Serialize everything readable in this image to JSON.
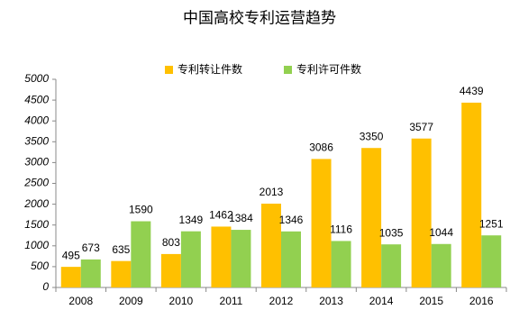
{
  "chart_data": {
    "type": "bar",
    "title": "中国高校专利运营趋势",
    "categories": [
      "2008",
      "2009",
      "2010",
      "2011",
      "2012",
      "2013",
      "2014",
      "2015",
      "2016"
    ],
    "series": [
      {
        "name": "专利转让件数",
        "color": "#FFC000",
        "values": [
          495,
          635,
          803,
          1462,
          2013,
          3086,
          3350,
          3577,
          4439
        ]
      },
      {
        "name": "专利许可件数",
        "color": "#92D050",
        "values": [
          673,
          1590,
          1349,
          1384,
          1346,
          1116,
          1035,
          1044,
          1251
        ]
      }
    ],
    "ylim": [
      0,
      5000
    ],
    "yticks": [
      0,
      500,
      1000,
      1500,
      2000,
      2500,
      3000,
      3500,
      4000,
      4500,
      5000
    ],
    "grid": false,
    "legend": "top"
  }
}
